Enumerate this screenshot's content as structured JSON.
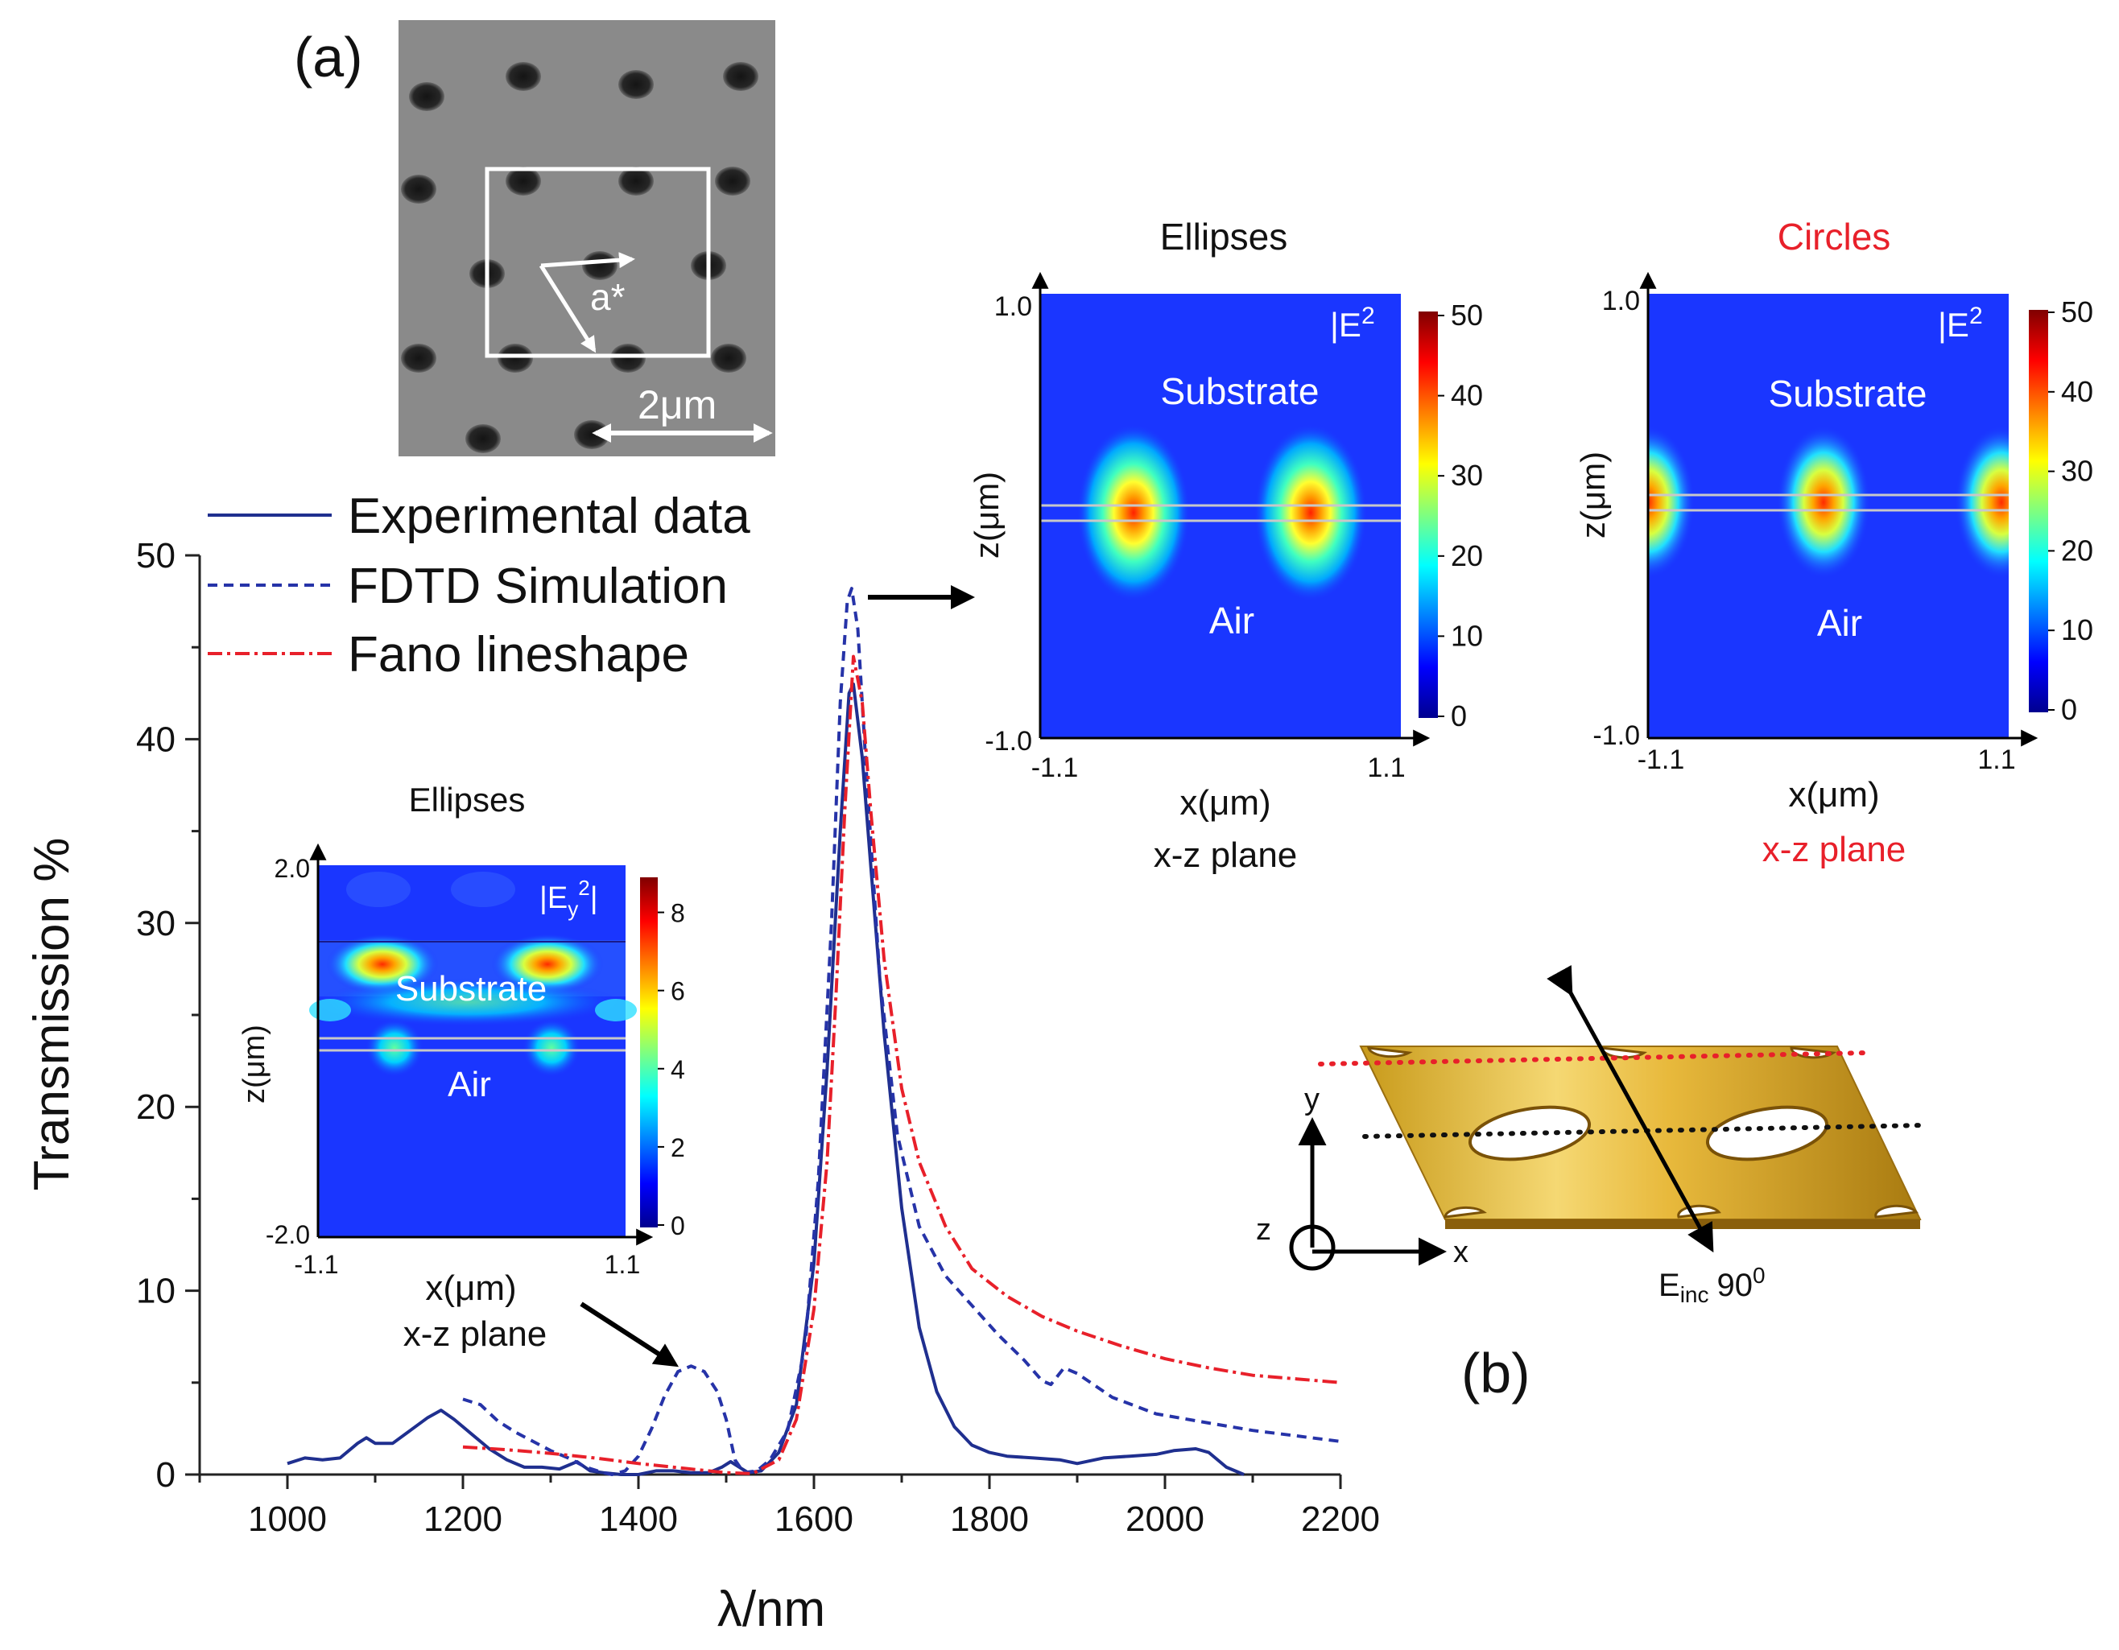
{
  "figure": {
    "panel_a_label": "(a)",
    "panel_b_label": "(b)",
    "sem": {
      "lattice_label": "a*",
      "scale_bar": "2μm"
    },
    "schematic": {
      "y_label": "y",
      "x_label": "x",
      "z_label": "z",
      "einc_label": "E",
      "einc_sub": "inc",
      "einc_angle": "90",
      "einc_sup": "0"
    }
  },
  "chart_data": [
    {
      "type": "line",
      "xlabel": "λ/nm",
      "ylabel": "Transmission %",
      "xlim": [
        900,
        2200
      ],
      "ylim": [
        0,
        50
      ],
      "x_ticks": [
        "1000",
        "1200",
        "1400",
        "1600",
        "1800",
        "2000",
        "2200"
      ],
      "y_ticks": [
        "0",
        "10",
        "20",
        "30",
        "40",
        "50"
      ],
      "legend_location": "top-left",
      "series": [
        {
          "name": "Experimental data",
          "color": "#1f2f8f",
          "style": "solid",
          "points": [
            [
              1000,
              0.6
            ],
            [
              1020,
              0.9
            ],
            [
              1040,
              0.8
            ],
            [
              1060,
              0.9
            ],
            [
              1080,
              1.7
            ],
            [
              1090,
              2.0
            ],
            [
              1100,
              1.7
            ],
            [
              1120,
              1.7
            ],
            [
              1140,
              2.4
            ],
            [
              1160,
              3.1
            ],
            [
              1175,
              3.5
            ],
            [
              1190,
              3.0
            ],
            [
              1210,
              2.2
            ],
            [
              1230,
              1.4
            ],
            [
              1250,
              0.8
            ],
            [
              1270,
              0.4
            ],
            [
              1290,
              0.4
            ],
            [
              1310,
              0.3
            ],
            [
              1330,
              0.7
            ],
            [
              1345,
              0.2
            ],
            [
              1360,
              0.1
            ],
            [
              1380,
              0.0
            ],
            [
              1400,
              0.0
            ],
            [
              1420,
              0.2
            ],
            [
              1440,
              0.2
            ],
            [
              1460,
              0.1
            ],
            [
              1480,
              0.1
            ],
            [
              1495,
              0.4
            ],
            [
              1505,
              0.7
            ],
            [
              1515,
              0.4
            ],
            [
              1525,
              0.1
            ],
            [
              1540,
              0.2
            ],
            [
              1560,
              1.2
            ],
            [
              1580,
              3.8
            ],
            [
              1600,
              11.5
            ],
            [
              1615,
              22.0
            ],
            [
              1630,
              35.0
            ],
            [
              1640,
              42.5
            ],
            [
              1645,
              43.0
            ],
            [
              1655,
              39.0
            ],
            [
              1665,
              33.0
            ],
            [
              1680,
              24.0
            ],
            [
              1700,
              14.5
            ],
            [
              1720,
              8.0
            ],
            [
              1740,
              4.5
            ],
            [
              1760,
              2.6
            ],
            [
              1780,
              1.6
            ],
            [
              1800,
              1.2
            ],
            [
              1820,
              1.0
            ],
            [
              1850,
              0.9
            ],
            [
              1880,
              0.8
            ],
            [
              1900,
              0.6
            ],
            [
              1930,
              0.9
            ],
            [
              1960,
              1.0
            ],
            [
              1990,
              1.1
            ],
            [
              2010,
              1.3
            ],
            [
              2035,
              1.4
            ],
            [
              2050,
              1.2
            ],
            [
              2070,
              0.4
            ],
            [
              2090,
              0.0
            ]
          ]
        },
        {
          "name": "FDTD Simulation",
          "color": "#2633a8",
          "style": "dashed",
          "points": [
            [
              1200,
              4.1
            ],
            [
              1220,
              3.8
            ],
            [
              1240,
              2.9
            ],
            [
              1260,
              2.3
            ],
            [
              1280,
              1.8
            ],
            [
              1300,
              1.3
            ],
            [
              1320,
              0.9
            ],
            [
              1340,
              0.4
            ],
            [
              1360,
              0.1
            ],
            [
              1370,
              0.0
            ],
            [
              1385,
              0.2
            ],
            [
              1400,
              1.0
            ],
            [
              1415,
              2.5
            ],
            [
              1430,
              4.3
            ],
            [
              1445,
              5.6
            ],
            [
              1460,
              5.9
            ],
            [
              1475,
              5.6
            ],
            [
              1490,
              4.5
            ],
            [
              1500,
              3.0
            ],
            [
              1510,
              0.8
            ],
            [
              1520,
              0.1
            ],
            [
              1535,
              0.2
            ],
            [
              1550,
              0.8
            ],
            [
              1570,
              2.4
            ],
            [
              1590,
              7.0
            ],
            [
              1605,
              16.0
            ],
            [
              1620,
              30.0
            ],
            [
              1630,
              42.0
            ],
            [
              1638,
              47.5
            ],
            [
              1643,
              48.2
            ],
            [
              1650,
              46.0
            ],
            [
              1660,
              38.0
            ],
            [
              1675,
              27.0
            ],
            [
              1695,
              18.5
            ],
            [
              1720,
              13.5
            ],
            [
              1750,
              10.8
            ],
            [
              1780,
              9.2
            ],
            [
              1810,
              7.6
            ],
            [
              1840,
              6.2
            ],
            [
              1860,
              5.1
            ],
            [
              1870,
              4.9
            ],
            [
              1885,
              5.8
            ],
            [
              1900,
              5.5
            ],
            [
              1940,
              4.2
            ],
            [
              1990,
              3.3
            ],
            [
              2050,
              2.8
            ],
            [
              2100,
              2.4
            ],
            [
              2150,
              2.1
            ],
            [
              2200,
              1.8
            ]
          ]
        },
        {
          "name": "Fano lineshape",
          "color": "#e8202a",
          "style": "dash-dot",
          "points": [
            [
              1200,
              1.5
            ],
            [
              1250,
              1.35
            ],
            [
              1300,
              1.15
            ],
            [
              1350,
              0.9
            ],
            [
              1400,
              0.6
            ],
            [
              1450,
              0.35
            ],
            [
              1500,
              0.1
            ],
            [
              1530,
              0.05
            ],
            [
              1560,
              0.8
            ],
            [
              1580,
              3.0
            ],
            [
              1600,
              9.0
            ],
            [
              1615,
              17.0
            ],
            [
              1625,
              26.0
            ],
            [
              1635,
              36.0
            ],
            [
              1645,
              44.5
            ],
            [
              1655,
              42.0
            ],
            [
              1665,
              36.0
            ],
            [
              1680,
              28.0
            ],
            [
              1700,
              21.0
            ],
            [
              1720,
              17.0
            ],
            [
              1750,
              13.5
            ],
            [
              1780,
              11.2
            ],
            [
              1820,
              9.7
            ],
            [
              1860,
              8.6
            ],
            [
              1900,
              7.8
            ],
            [
              1950,
              7.0
            ],
            [
              2000,
              6.3
            ],
            [
              2050,
              5.8
            ],
            [
              2100,
              5.4
            ],
            [
              2150,
              5.2
            ],
            [
              2200,
              5.0
            ]
          ]
        }
      ],
      "annotations": [
        "arrow from FDTD peak (~1640 nm) to upper field maps",
        "arrow from lower field map to secondary peak (~1450 nm)"
      ]
    },
    {
      "type": "heatmap",
      "title": "Ellipses",
      "field_label": "|E",
      "field_sup": "2",
      "xlabel": "x(μm)",
      "ylabel": "z(μm)",
      "subtitle": "x-z plane",
      "xlim": [
        -1.1,
        1.1
      ],
      "ylim": [
        -1.0,
        1.0
      ],
      "x_ticks": [
        "-1.1",
        "1.1"
      ],
      "y_ticks": [
        "1.0",
        "-1.0"
      ],
      "colorbar_ticks": [
        "50",
        "40",
        "30",
        "20",
        "10",
        "0"
      ],
      "colorbar_range": [
        0,
        50
      ],
      "region_labels": [
        "Substrate",
        "Air"
      ],
      "hotspots_x_um": [
        -0.55,
        0.55
      ],
      "peak_value": 45
    },
    {
      "type": "heatmap",
      "title": "Circles",
      "title_color": "#e8202a",
      "field_label": "|E",
      "field_sup": "2",
      "xlabel": "x(μm)",
      "ylabel": "z(μm)",
      "subtitle": "x-z plane",
      "xlim": [
        -1.1,
        1.1
      ],
      "ylim": [
        -1.0,
        1.0
      ],
      "x_ticks": [
        "-1.1",
        "1.1"
      ],
      "y_ticks": [
        "1.0",
        "-1.0"
      ],
      "colorbar_ticks": [
        "50",
        "40",
        "30",
        "20",
        "10",
        "0"
      ],
      "colorbar_range": [
        0,
        50
      ],
      "region_labels": [
        "Substrate",
        "Air"
      ],
      "hotspots_x_um": [
        -1.1,
        0.0,
        1.1
      ],
      "peak_value": 40
    },
    {
      "type": "heatmap",
      "title": "Ellipses",
      "field_label": "|E",
      "field_sub": "y",
      "field_sup": "2",
      "xlabel": "x(μm)",
      "ylabel": "z(μm)",
      "subtitle": "x-z plane",
      "xlim": [
        -1.1,
        1.1
      ],
      "ylim": [
        -2.0,
        2.0
      ],
      "x_ticks": [
        "-1.1",
        "1.1"
      ],
      "y_ticks": [
        "2.0",
        "-2.0"
      ],
      "colorbar_ticks": [
        "8",
        "6",
        "4",
        "2",
        "0"
      ],
      "colorbar_range": [
        0,
        9
      ],
      "region_labels": [
        "Substrate",
        "Air"
      ],
      "hotspots_x_um": [
        -0.55,
        0.55
      ],
      "peak_value": 8
    }
  ]
}
